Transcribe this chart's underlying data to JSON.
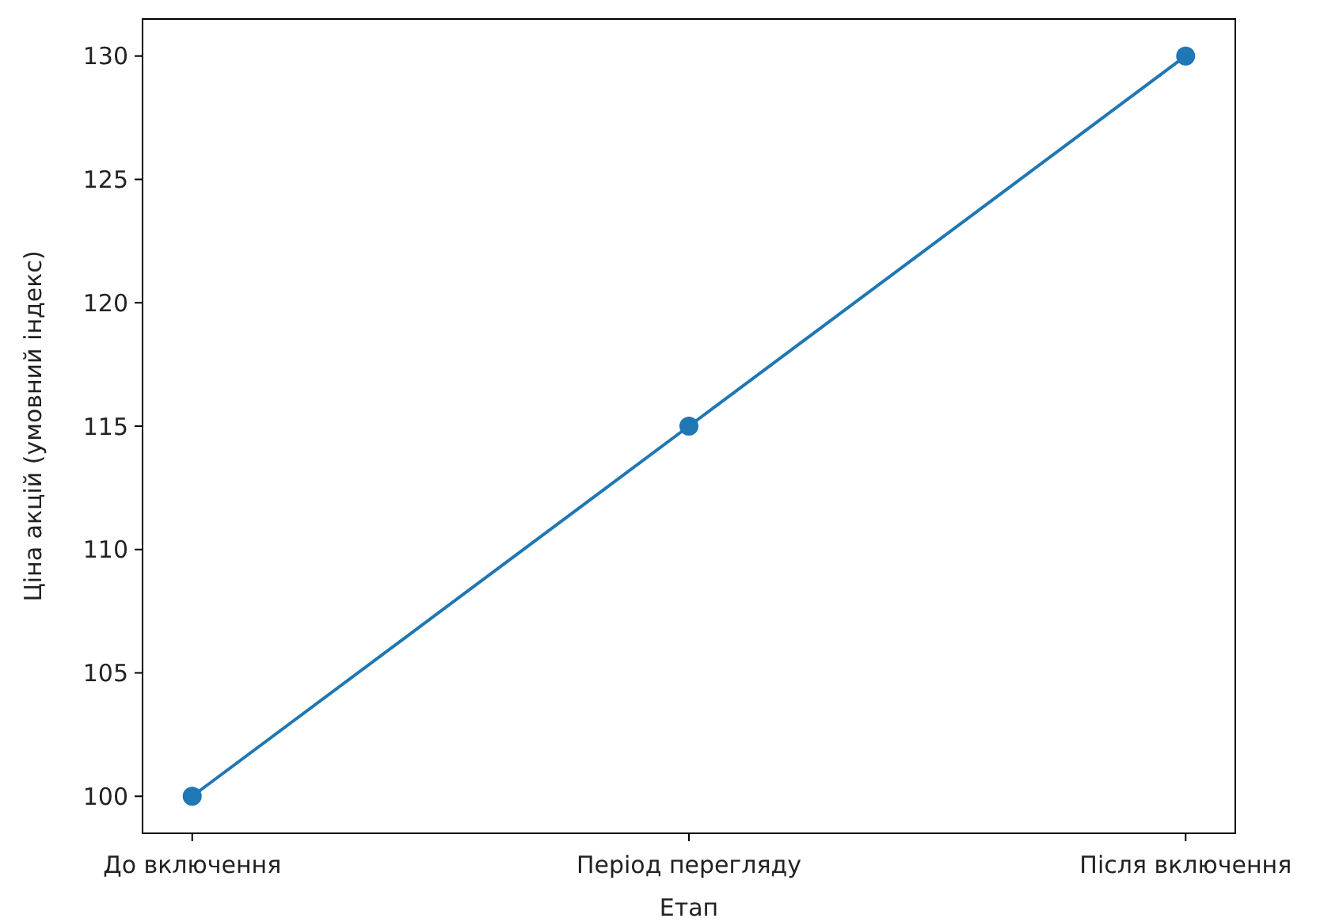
{
  "chart_data": {
    "type": "line",
    "xlabel": "Етап",
    "ylabel": "Ціна акцій (умовний індекс)",
    "categories": [
      "До включення",
      "Період перегляду",
      "Після включення"
    ],
    "series": [
      {
        "color": "#1f77b4",
        "values": [
          100,
          115,
          130
        ]
      }
    ],
    "ylim": [
      98.5,
      131.5
    ],
    "yticks": [
      100,
      105,
      110,
      115,
      120,
      125,
      130
    ],
    "marker": "circle",
    "line_style": "solid"
  }
}
